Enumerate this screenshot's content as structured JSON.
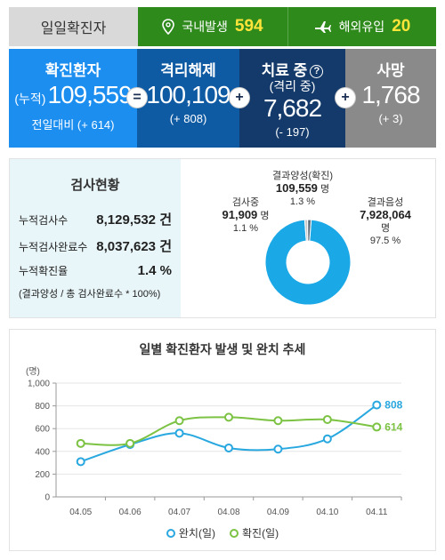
{
  "daily": {
    "label": "일일확진자",
    "domestic_label": "국내발생",
    "domestic_value": "594",
    "overseas_label": "해외유입",
    "overseas_value": "20"
  },
  "stats": {
    "confirmed": {
      "title": "확진환자",
      "prefix": "(누적)",
      "value": "109,559",
      "delta": "전일대비 (+ 614)"
    },
    "released": {
      "title": "격리해제",
      "value": "100,109",
      "delta": "(+ 808)"
    },
    "treatment": {
      "title": "치료 중",
      "sub": "(격리 중)",
      "value": "7,682",
      "delta": "(- 197)"
    },
    "deaths": {
      "title": "사망",
      "value": "1,768",
      "delta": "(+ 3)"
    },
    "op_eq": "=",
    "op_plus": "+"
  },
  "tests": {
    "title": "검사현황",
    "rows": [
      {
        "label": "누적검사수",
        "value": "8,129,532 건"
      },
      {
        "label": "누적검사완료수",
        "value": "8,037,623 건"
      },
      {
        "label": "누적확진율",
        "value": "1.4 %"
      }
    ],
    "note": "(결과양성 / 총 검사완료수 * 100%)",
    "pie": {
      "testing": {
        "label": "검사중",
        "value": "91,909",
        "unit": "명",
        "pct": "1.1 %",
        "fraction": 0.011
      },
      "positive": {
        "label": "결과양성(확진)",
        "value": "109,559",
        "unit": "명",
        "pct": "1.3 %",
        "fraction": 0.013
      },
      "negative": {
        "label": "결과음성",
        "value": "7,928,064",
        "unit": "명",
        "pct": "97.5 %",
        "fraction": 0.975
      }
    }
  },
  "chart_data": {
    "type": "line",
    "title": "일별 확진환자 발생 및 완치 추세",
    "ylabel": "(명)",
    "ylim": [
      0,
      1000
    ],
    "yticks": [
      "0",
      "200",
      "400",
      "600",
      "800",
      "1,000"
    ],
    "categories": [
      "04.05",
      "04.06",
      "04.07",
      "04.08",
      "04.09",
      "04.10",
      "04.11"
    ],
    "series": [
      {
        "name": "완치(일)",
        "color": "#29a8e0",
        "values": [
          310,
          460,
          560,
          430,
          420,
          510,
          808
        ]
      },
      {
        "name": "확진(일)",
        "color": "#7cc243",
        "values": [
          470,
          470,
          670,
          700,
          670,
          680,
          614
        ]
      }
    ],
    "end_labels": [
      "808",
      "614"
    ],
    "legend": "bottom-center",
    "grid": true
  }
}
